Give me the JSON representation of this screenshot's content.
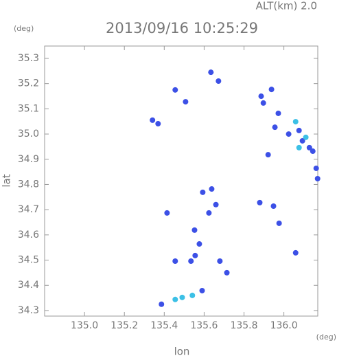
{
  "chart_data": {
    "type": "scatter",
    "title": "2013/09/16 10:25:29",
    "subtitle": "ALT(km) 2.0",
    "ylabel": "lat",
    "yunit": "(deg)",
    "xlabel": "lon",
    "xunit": "(deg)",
    "xlim": [
      134.8,
      136.17
    ],
    "ylim": [
      34.278,
      35.349
    ],
    "xticks": [
      {
        "value": 135.0,
        "label": "135.0"
      },
      {
        "value": 135.2,
        "label": "135.2"
      },
      {
        "value": 135.4,
        "label": "135.4"
      },
      {
        "value": 135.6,
        "label": "135.6"
      },
      {
        "value": 135.8,
        "label": "135.8"
      },
      {
        "value": 136.0,
        "label": "136.0"
      }
    ],
    "yticks": [
      34.3,
      34.4,
      34.5,
      34.6,
      34.7,
      34.8,
      34.9,
      {
        "value": 35.0,
        "label": "35.0"
      },
      35.1,
      35.2,
      35.3
    ],
    "grid": false,
    "series": [
      {
        "color": "#3c50e6",
        "x": [
          135.634,
          135.672,
          135.455,
          135.507,
          135.341,
          135.369,
          135.886,
          135.938,
          135.897,
          135.972,
          135.955,
          136.024,
          136.093,
          136.128,
          136.076,
          136.145,
          136.162,
          136.169,
          135.921,
          135.638,
          135.593,
          135.659,
          135.624,
          135.414,
          135.552,
          135.576,
          135.555,
          135.534,
          135.455,
          135.679,
          135.714,
          135.59,
          135.948,
          135.976,
          136.059,
          135.879,
          135.386
        ],
        "y": [
          35.245,
          35.21,
          35.175,
          35.128,
          35.055,
          35.041,
          35.15,
          35.177,
          35.123,
          35.082,
          35.027,
          35.0,
          34.973,
          34.946,
          35.014,
          34.932,
          34.864,
          34.823,
          34.918,
          34.782,
          34.769,
          34.72,
          34.687,
          34.687,
          34.619,
          34.564,
          34.518,
          34.496,
          34.496,
          34.496,
          34.45,
          34.379,
          34.714,
          34.646,
          34.529,
          34.728,
          34.325
        ]
      },
      {
        "color": "#3cc0e6",
        "x": [
          135.455,
          135.49,
          135.541,
          136.076,
          136.11,
          136.059
        ],
        "y": [
          34.344,
          34.352,
          34.36,
          34.946,
          34.987,
          35.049
        ]
      }
    ]
  }
}
